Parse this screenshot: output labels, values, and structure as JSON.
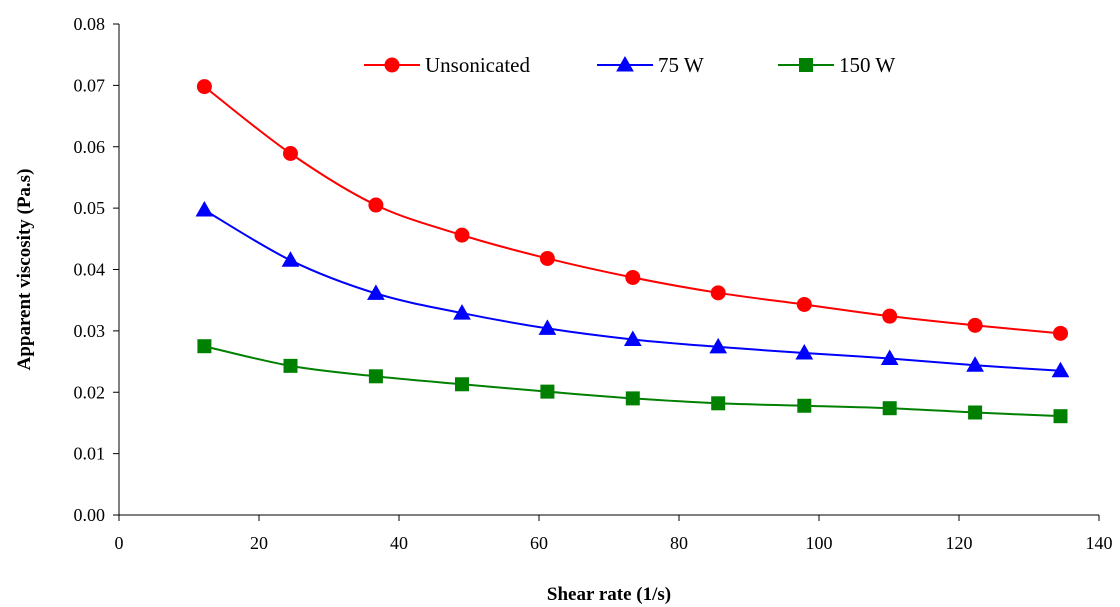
{
  "chart_data": {
    "type": "line",
    "title": "",
    "xlabel": "Shear rate (1/s)",
    "ylabel": "Apparent viscosity (Pa.s)",
    "xlim": [
      0,
      140
    ],
    "ylim": [
      0,
      0.08
    ],
    "xticks": [
      0,
      20,
      40,
      60,
      80,
      100,
      120,
      140
    ],
    "xtick_labels": [
      "0",
      "20",
      "40",
      "60",
      "80",
      "100",
      "120",
      "140"
    ],
    "yticks": [
      0,
      0.01,
      0.02,
      0.03,
      0.04,
      0.05,
      0.06,
      0.07,
      0.08
    ],
    "ytick_labels": [
      "0.00",
      "0.01",
      "0.02",
      "0.03",
      "0.04",
      "0.05",
      "0.06",
      "0.07",
      "0.08"
    ],
    "grid": false,
    "legend_position": "top",
    "x": [
      12.2,
      24.5,
      36.7,
      49.0,
      61.2,
      73.4,
      85.6,
      97.9,
      110.1,
      122.3,
      134.5
    ],
    "series": [
      {
        "name": "Unsonicated",
        "color": "#ff0000",
        "marker": "circle",
        "values": [
          0.0698,
          0.0589,
          0.0505,
          0.0456,
          0.0418,
          0.0387,
          0.0362,
          0.0343,
          0.0324,
          0.0309,
          0.0296
        ]
      },
      {
        "name": "75 W",
        "color": "#0000ff",
        "marker": "triangle",
        "values": [
          0.0497,
          0.0415,
          0.0361,
          0.0329,
          0.0304,
          0.0286,
          0.0274,
          0.0264,
          0.0255,
          0.0244,
          0.0235
        ]
      },
      {
        "name": "150 W",
        "color": "#008000",
        "marker": "square",
        "values": [
          0.0275,
          0.0243,
          0.0226,
          0.0213,
          0.0201,
          0.019,
          0.0182,
          0.0178,
          0.0174,
          0.0167,
          0.0161
        ]
      }
    ]
  }
}
